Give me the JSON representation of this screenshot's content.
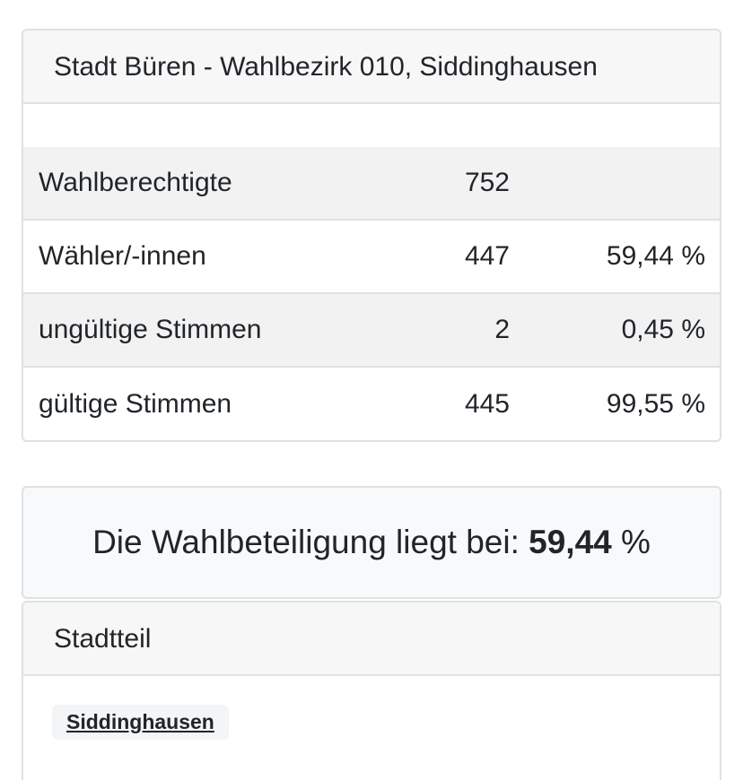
{
  "results": {
    "header": "Stadt Büren - Wahlbezirk 010, Siddinghausen",
    "rows": [
      {
        "label": "Wahlberechtigte",
        "value": "752",
        "percent": ""
      },
      {
        "label": "Wähler/-innen",
        "value": "447",
        "percent": "59,44 %"
      },
      {
        "label": "ungültige Stimmen",
        "value": "2",
        "percent": "0,45 %"
      },
      {
        "label": "gültige Stimmen",
        "value": "445",
        "percent": "99,55 %"
      }
    ]
  },
  "turnout": {
    "prefix": "Die Wahlbeteiligung liegt bei: ",
    "value": "59,44",
    "suffix": " %"
  },
  "district": {
    "header": "Stadtteil",
    "link": "Siddinghausen"
  }
}
